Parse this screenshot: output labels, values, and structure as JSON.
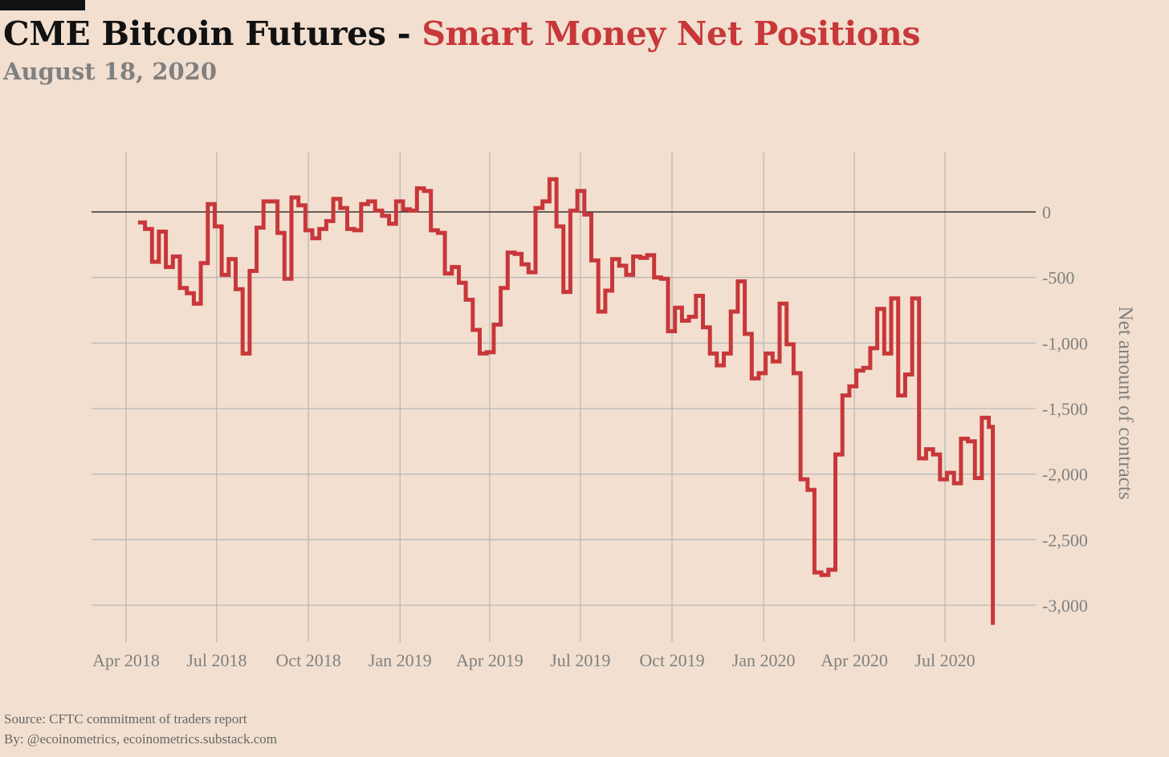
{
  "title_part1": "CME Bitcoin Futures - ",
  "title_part2": "Smart Money Net Positions",
  "subtitle": "August 18, 2020",
  "source": "Source: CFTC commitment of traders report",
  "byline": "By: @ecoinometrics, ecoinometrics.substack.com",
  "colors": {
    "background": "#f2dfcf",
    "line": "#c8373a",
    "grid": "#b5b5b5",
    "zero_line": "#111111",
    "text_muted": "#808080"
  },
  "chart_data": {
    "type": "line",
    "step": true,
    "ylabel": "Net amount of contracts",
    "xlabel": "",
    "xlim": [
      "2018-03-01",
      "2020-10-01"
    ],
    "ylim": [
      -3300,
      450
    ],
    "yticks": [
      0,
      -500,
      -1000,
      -1500,
      -2000,
      -2500,
      -3000
    ],
    "ytick_labels": [
      "0",
      "-500",
      "-1,000",
      "-1,500",
      "-2,000",
      "-2,500",
      "-3,000"
    ],
    "xticks": [
      "2018-04-01",
      "2018-07-01",
      "2018-10-01",
      "2019-01-01",
      "2019-04-01",
      "2019-07-01",
      "2019-10-01",
      "2020-01-01",
      "2020-04-01",
      "2020-07-01"
    ],
    "xtick_labels": [
      "Apr 2018",
      "Jul 2018",
      "Oct 2018",
      "Jan 2019",
      "Apr 2019",
      "Jul 2019",
      "Oct 2019",
      "Jan 2020",
      "Apr 2020",
      "Jul 2020"
    ],
    "grid": true,
    "y_axis_position": "right",
    "series": [
      {
        "x": [
          "2018-04-13",
          "2018-04-20",
          "2018-04-27",
          "2018-05-04",
          "2018-05-11",
          "2018-05-18",
          "2018-05-25",
          "2018-06-01",
          "2018-06-08",
          "2018-06-15",
          "2018-06-22",
          "2018-06-29",
          "2018-07-06",
          "2018-07-13",
          "2018-07-20",
          "2018-07-27",
          "2018-08-03",
          "2018-08-10",
          "2018-08-17",
          "2018-08-24",
          "2018-08-31",
          "2018-09-07",
          "2018-09-14",
          "2018-09-21",
          "2018-09-28",
          "2018-10-05",
          "2018-10-12",
          "2018-10-19",
          "2018-10-26",
          "2018-11-02",
          "2018-11-09",
          "2018-11-16",
          "2018-11-23",
          "2018-11-30",
          "2018-12-07",
          "2018-12-14",
          "2018-12-21",
          "2018-12-28",
          "2019-01-04",
          "2019-01-11",
          "2019-01-18",
          "2019-01-25",
          "2019-02-01",
          "2019-02-08",
          "2019-02-15",
          "2019-02-22",
          "2019-03-01",
          "2019-03-08",
          "2019-03-15",
          "2019-03-22",
          "2019-03-29",
          "2019-04-05",
          "2019-04-12",
          "2019-04-19",
          "2019-04-26",
          "2019-05-03",
          "2019-05-10",
          "2019-05-17",
          "2019-05-24",
          "2019-05-31",
          "2019-06-07",
          "2019-06-14",
          "2019-06-21",
          "2019-06-28",
          "2019-07-05",
          "2019-07-12",
          "2019-07-19",
          "2019-07-26",
          "2019-08-02",
          "2019-08-09",
          "2019-08-16",
          "2019-08-23",
          "2019-08-30",
          "2019-09-06",
          "2019-09-13",
          "2019-09-20",
          "2019-09-27",
          "2019-10-04",
          "2019-10-11",
          "2019-10-18",
          "2019-10-25",
          "2019-11-01",
          "2019-11-08",
          "2019-11-15",
          "2019-11-22",
          "2019-11-29",
          "2019-12-06",
          "2019-12-13",
          "2019-12-20",
          "2019-12-27",
          "2020-01-03",
          "2020-01-10",
          "2020-01-17",
          "2020-01-24",
          "2020-01-31",
          "2020-02-07",
          "2020-02-14",
          "2020-02-21",
          "2020-02-28",
          "2020-03-06",
          "2020-03-13",
          "2020-03-20",
          "2020-03-27",
          "2020-04-03",
          "2020-04-10",
          "2020-04-17",
          "2020-04-24",
          "2020-05-01",
          "2020-05-08",
          "2020-05-15",
          "2020-05-22",
          "2020-05-29",
          "2020-06-05",
          "2020-06-12",
          "2020-06-19",
          "2020-06-26",
          "2020-07-03",
          "2020-07-10",
          "2020-07-17",
          "2020-07-24",
          "2020-07-31",
          "2020-08-07",
          "2020-08-14",
          "2020-08-18"
        ],
        "y": [
          -80,
          -130,
          -380,
          -150,
          -420,
          -340,
          -580,
          -620,
          -700,
          -390,
          60,
          -110,
          -480,
          -360,
          -590,
          -1080,
          -450,
          -120,
          80,
          80,
          -160,
          -510,
          110,
          50,
          -140,
          -200,
          -130,
          -70,
          100,
          30,
          -130,
          -140,
          60,
          80,
          10,
          -30,
          -90,
          80,
          20,
          10,
          180,
          160,
          -140,
          -160,
          -470,
          -420,
          -540,
          -670,
          -900,
          -1080,
          -1070,
          -860,
          -580,
          -310,
          -320,
          -400,
          -460,
          30,
          80,
          250,
          -110,
          -610,
          10,
          160,
          -20,
          -370,
          -760,
          -600,
          -360,
          -410,
          -480,
          -340,
          -350,
          -330,
          -500,
          -510,
          -910,
          -730,
          -830,
          -800,
          -640,
          -880,
          -1080,
          -1170,
          -1080,
          -760,
          -530,
          -930,
          -1270,
          -1230,
          -1080,
          -1140,
          -700,
          -1010,
          -1230,
          -2040,
          -2120,
          -2750,
          -2770,
          -2730,
          -1850,
          -1400,
          -1330,
          -1210,
          -1190,
          -1040,
          -740,
          -1080,
          -660,
          -1400,
          -1240,
          -660,
          -1880,
          -1810,
          -1850,
          -2040,
          -1990,
          -2070,
          -1730,
          -1750,
          -2030,
          -1570,
          -1640,
          -3150
        ]
      }
    ]
  }
}
